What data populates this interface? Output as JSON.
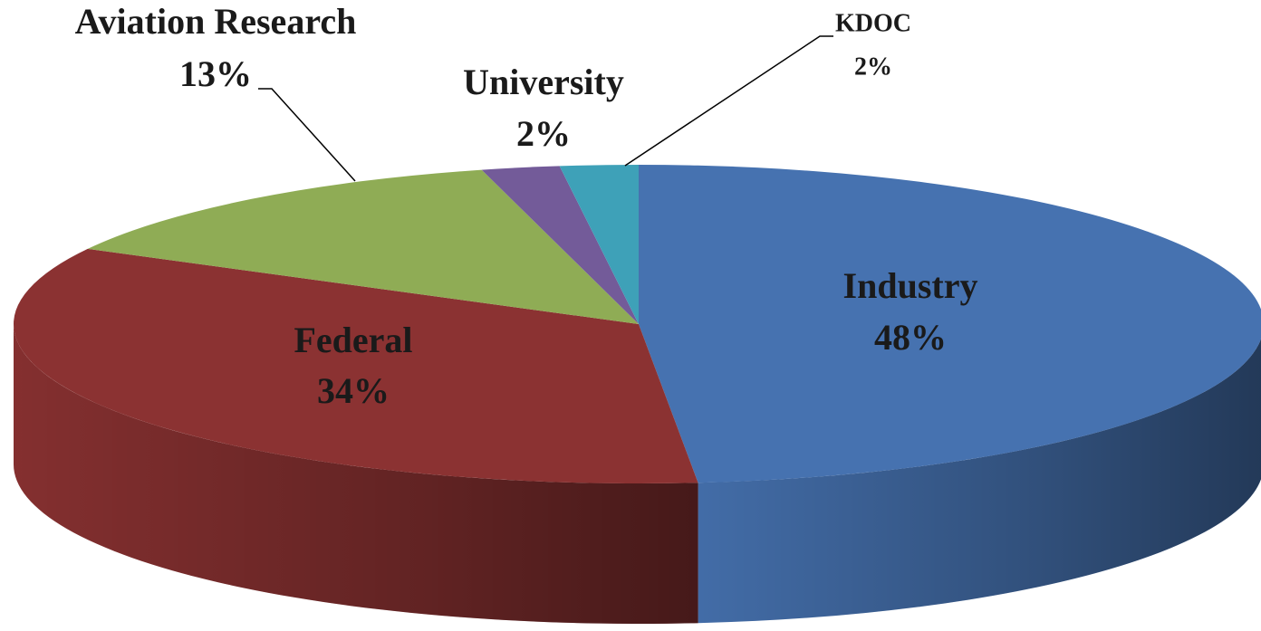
{
  "chart_data": {
    "type": "pie3d",
    "categories": [
      "Industry",
      "Federal",
      "Aviation Research",
      "University",
      "KDOC"
    ],
    "values": [
      48,
      34,
      13,
      2,
      2
    ],
    "value_labels": [
      "48%",
      "34%",
      "13%",
      "2%",
      "2%"
    ],
    "colors": [
      "#4672b0",
      "#8b3232",
      "#8fac55",
      "#735b99",
      "#3ea1b8"
    ]
  }
}
